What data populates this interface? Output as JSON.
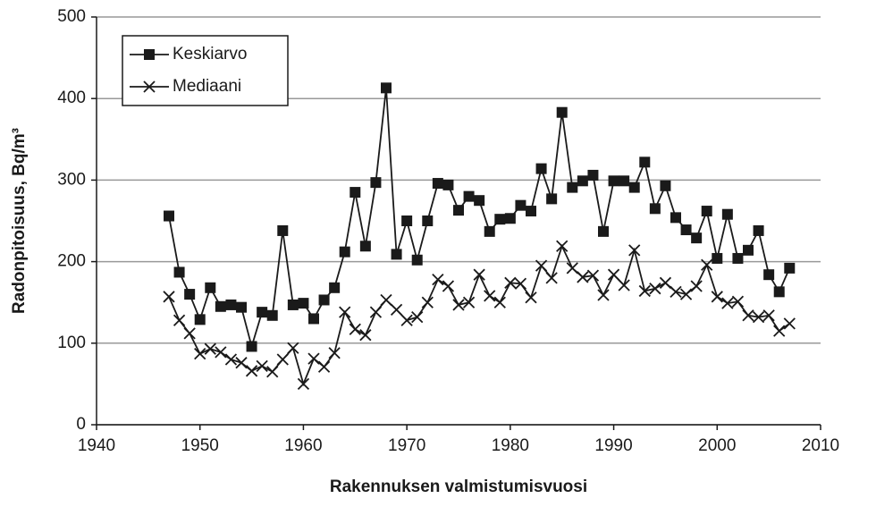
{
  "chart_data": {
    "type": "line",
    "xlabel": "Rakennuksen valmistumisvuosi",
    "ylabel": "Radonpitoisuus, Bq/m³",
    "x": [
      1947,
      1948,
      1949,
      1950,
      1951,
      1952,
      1953,
      1954,
      1955,
      1956,
      1957,
      1958,
      1959,
      1960,
      1961,
      1962,
      1963,
      1964,
      1965,
      1966,
      1967,
      1968,
      1969,
      1970,
      1971,
      1972,
      1973,
      1974,
      1975,
      1976,
      1977,
      1978,
      1979,
      1980,
      1981,
      1982,
      1983,
      1984,
      1985,
      1986,
      1987,
      1988,
      1989,
      1990,
      1991,
      1992,
      1993,
      1994,
      1995,
      1996,
      1997,
      1998,
      1999,
      2000,
      2001,
      2002,
      2003,
      2004,
      2005,
      2006,
      2007
    ],
    "series": [
      {
        "name": "Keskiarvo",
        "color": "#1a1a1a",
        "marker": "square",
        "values": [
          256,
          187,
          160,
          129,
          168,
          145,
          147,
          144,
          96,
          138,
          134,
          238,
          147,
          149,
          130,
          153,
          168,
          212,
          285,
          219,
          297,
          413,
          209,
          250,
          202,
          250,
          296,
          294,
          263,
          280,
          275,
          237,
          252,
          253,
          269,
          262,
          314,
          277,
          383,
          291,
          299,
          306,
          237,
          299,
          299,
          291,
          322,
          265,
          293,
          254,
          239,
          229,
          262,
          204,
          258,
          204,
          214,
          238,
          184,
          163,
          192
        ]
      },
      {
        "name": "Mediaani",
        "color": "#1a1a1a",
        "marker": "x",
        "values": [
          157,
          128,
          112,
          87,
          93,
          89,
          80,
          76,
          66,
          72,
          65,
          80,
          94,
          50,
          81,
          71,
          88,
          138,
          117,
          110,
          138,
          153,
          141,
          128,
          132,
          150,
          178,
          170,
          147,
          150,
          184,
          158,
          150,
          174,
          173,
          156,
          195,
          180,
          219,
          192,
          181,
          183,
          159,
          184,
          171,
          214,
          164,
          167,
          174,
          163,
          160,
          170,
          196,
          157,
          149,
          151,
          134,
          132,
          134,
          115,
          124
        ]
      }
    ],
    "xlim": [
      1940,
      2010
    ],
    "xticks": [
      1940,
      1950,
      1960,
      1970,
      1980,
      1990,
      2000,
      2010
    ],
    "ylim": [
      0,
      500
    ],
    "yticks": [
      0,
      100,
      200,
      300,
      400,
      500
    ],
    "grid": true,
    "legend": "upper-left"
  }
}
